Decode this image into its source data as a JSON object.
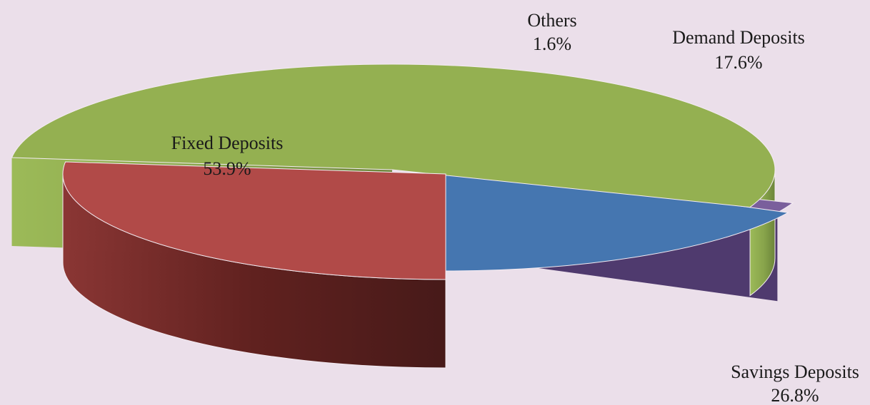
{
  "chart_data": {
    "type": "pie",
    "style": "3d-exploded",
    "title": "",
    "slices": [
      {
        "name": "Demand Deposits",
        "value": 17.6,
        "label": "17.6%",
        "color": "#4576B0"
      },
      {
        "name": "Savings Deposits",
        "value": 26.8,
        "label": "26.8%",
        "color": "#B14A48"
      },
      {
        "name": "Fixed Deposits",
        "value": 53.9,
        "label": "53.9%",
        "color": "#94B051"
      },
      {
        "name": "Others",
        "value": 1.6,
        "label": "1.6%",
        "color": "#7A5F9C"
      }
    ],
    "background": "#EBDFEA"
  }
}
